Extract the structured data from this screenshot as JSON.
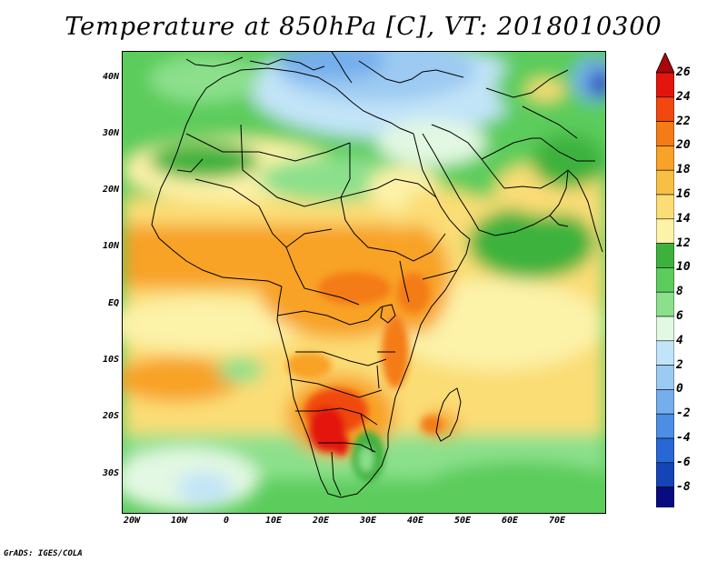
{
  "title": "Temperature at 850hPa [C], VT: 2018010300",
  "credit": "GrADS: IGES/COLA",
  "map": {
    "lat_labels": [
      "40N",
      "30N",
      "20N",
      "10N",
      "EQ",
      "10S",
      "20S",
      "30S"
    ],
    "lon_labels": [
      "20W",
      "10W",
      "0",
      "10E",
      "20E",
      "30E",
      "40E",
      "50E",
      "60E",
      "70E"
    ]
  },
  "colorbar": {
    "labels": [
      "26",
      "24",
      "22",
      "20",
      "18",
      "16",
      "14",
      "12",
      "10",
      "8",
      "6",
      "4",
      "2",
      "0",
      "-2",
      "-4",
      "-6",
      "-8"
    ],
    "colors": [
      "#e2160c",
      "#f0480e",
      "#f47b16",
      "#f8a228",
      "#f7c044",
      "#fbdd76",
      "#fcf2a8",
      "#3cb23c",
      "#5ccc5c",
      "#8ce08c",
      "#e2f8e2",
      "#c2e4f8",
      "#9ccaf2",
      "#74aeec",
      "#4c8ee4",
      "#2868d4",
      "#1444b6",
      "#080c7e"
    ],
    "top_arrow_color": "#a8060a",
    "bottom_arrow_color": "#d8dcf8"
  }
}
